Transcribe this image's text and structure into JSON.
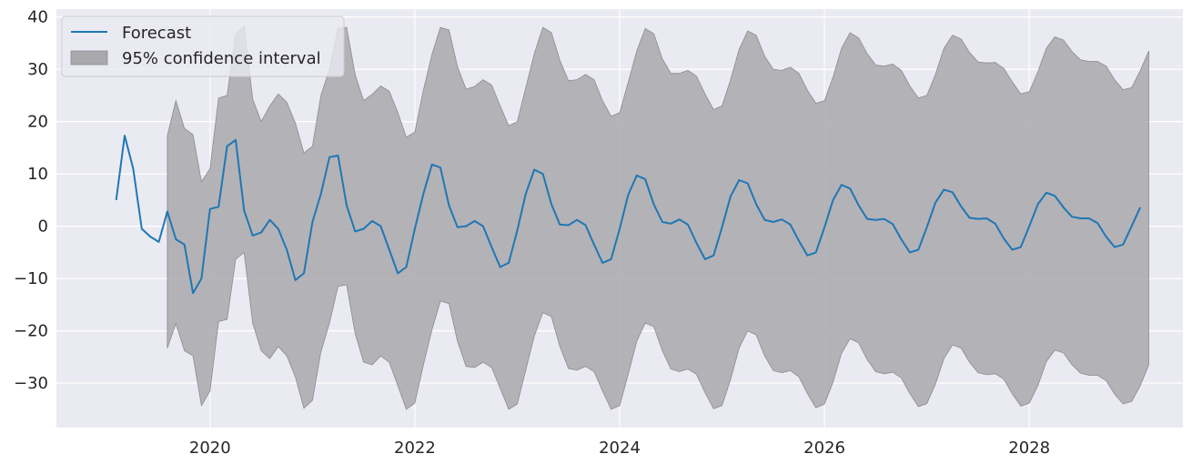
{
  "chart_data": {
    "type": "line",
    "title": "",
    "xlabel": "",
    "ylabel": "",
    "xlim": [
      2018.5,
      2029.5
    ],
    "ylim": [
      -38.5,
      41.5
    ],
    "x_tick_labels": [
      "2020",
      "2022",
      "2024",
      "2026",
      "2028"
    ],
    "x_ticks": [
      2020,
      2022,
      2024,
      2026,
      2028
    ],
    "y_ticks": [
      -30,
      -20,
      -10,
      0,
      10,
      20,
      30,
      40
    ],
    "y_tick_labels": [
      "−30",
      "−20",
      "−10",
      "0",
      "10",
      "20",
      "30",
      "40"
    ],
    "grid": true,
    "legend_position": "top-left",
    "colors": {
      "background": "#eaeaf2",
      "grid": "#ffffff",
      "forecast_line": "#1f77b4",
      "interval_fill": "#a9a8ad",
      "interval_edge": "#8c8b90"
    },
    "series": [
      {
        "name": "Forecast",
        "x_start": "2019-02",
        "frequency": "monthly",
        "values": [
          5.0,
          17.3,
          11.0,
          -0.5,
          -2.0,
          -3.0,
          2.8,
          -2.5,
          -3.5,
          -12.8,
          -10.0,
          3.3,
          3.7,
          15.3,
          16.5,
          3.0,
          -1.8,
          -1.2,
          1.2,
          -0.5,
          -4.5,
          -10.3,
          -9.0,
          0.8,
          6.2,
          13.2,
          13.5,
          4.0,
          -1.0,
          -0.5,
          1.0,
          0.0,
          -4.5,
          -9.0,
          -7.8,
          -0.5,
          6.2,
          11.8,
          11.2,
          4.0,
          -0.2,
          0.0,
          1.0,
          0.0,
          -4.0,
          -7.8,
          -7.0,
          -0.8,
          6.2,
          10.8,
          10.0,
          4.2,
          0.3,
          0.2,
          1.2,
          0.2,
          -3.5,
          -7.0,
          -6.3,
          -0.5,
          6.0,
          9.7,
          9.0,
          4.2,
          0.8,
          0.5,
          1.3,
          0.3,
          -3.2,
          -6.3,
          -5.6,
          -0.2,
          5.7,
          8.8,
          8.2,
          4.2,
          1.2,
          0.8,
          1.3,
          0.3,
          -2.8,
          -5.6,
          -5.0,
          -0.2,
          5.0,
          7.9,
          7.2,
          4.0,
          1.4,
          1.2,
          1.4,
          0.4,
          -2.5,
          -5.0,
          -4.5,
          -0.2,
          4.5,
          7.0,
          6.5,
          3.8,
          1.6,
          1.4,
          1.5,
          0.5,
          -2.3,
          -4.5,
          -4.0,
          0.0,
          4.2,
          6.4,
          5.8,
          3.6,
          1.8,
          1.5,
          1.5,
          0.6,
          -2.0,
          -4.0,
          -3.5,
          0.0,
          3.6
        ]
      },
      {
        "name": "95% confidence interval",
        "x_start": "2019-08",
        "frequency": "monthly",
        "lower": [
          -23.3,
          -18.6,
          -23.8,
          -24.8,
          -34.3,
          -31.5,
          -18.2,
          -17.8,
          -6.3,
          -5.0,
          -18.5,
          -23.8,
          -25.3,
          -23.0,
          -24.8,
          -28.8,
          -34.8,
          -33.3,
          -24.0,
          -18.5,
          -11.5,
          -11.2,
          -20.5,
          -26.0,
          -26.5,
          -24.8,
          -26.0,
          -30.5,
          -35.0,
          -33.8,
          -26.5,
          -19.8,
          -14.3,
          -14.8,
          -22.0,
          -26.8,
          -27.0,
          -26.0,
          -27.0,
          -31.0,
          -35.0,
          -34.0,
          -27.5,
          -21.0,
          -16.5,
          -17.3,
          -23.0,
          -27.2,
          -27.5,
          -26.8,
          -27.8,
          -31.5,
          -35.0,
          -34.3,
          -28.3,
          -22.0,
          -18.5,
          -19.2,
          -23.8,
          -27.3,
          -27.8,
          -27.3,
          -28.3,
          -31.8,
          -34.9,
          -34.3,
          -29.3,
          -23.3,
          -20.0,
          -20.8,
          -24.8,
          -27.6,
          -28.0,
          -27.6,
          -28.8,
          -32.0,
          -34.7,
          -34.0,
          -29.8,
          -24.3,
          -21.5,
          -22.3,
          -25.5,
          -27.8,
          -28.2,
          -27.9,
          -29.0,
          -32.0,
          -34.5,
          -33.9,
          -30.2,
          -25.3,
          -22.7,
          -23.3,
          -26.0,
          -28.0,
          -28.4,
          -28.2,
          -29.2,
          -32.0,
          -34.4,
          -33.8,
          -30.5,
          -25.9,
          -23.7,
          -24.2,
          -26.5,
          -28.1,
          -28.5,
          -28.5,
          -29.5,
          -32.1,
          -34.0,
          -33.5,
          -30.5,
          -26.5
        ],
        "upper": [
          17.3,
          24.0,
          18.7,
          17.5,
          8.5,
          11.0,
          24.5,
          25.0,
          36.7,
          38.2,
          24.3,
          20.0,
          23.0,
          25.3,
          23.7,
          19.7,
          14.0,
          15.3,
          25.0,
          30.0,
          37.8,
          38.0,
          29.0,
          24.0,
          25.2,
          26.8,
          25.8,
          21.7,
          17.0,
          18.0,
          26.0,
          32.8,
          38.0,
          37.5,
          30.5,
          26.2,
          26.7,
          28.0,
          27.0,
          23.0,
          19.2,
          20.0,
          26.5,
          33.0,
          38.0,
          37.0,
          31.7,
          27.8,
          28.0,
          29.0,
          28.0,
          24.0,
          21.0,
          21.7,
          27.5,
          33.5,
          37.8,
          36.8,
          32.0,
          29.2,
          29.2,
          29.8,
          28.7,
          25.3,
          22.3,
          23.0,
          28.0,
          33.8,
          37.3,
          36.5,
          32.5,
          30.0,
          29.8,
          30.4,
          29.2,
          26.0,
          23.5,
          24.0,
          28.5,
          34.0,
          37.0,
          36.0,
          33.0,
          30.8,
          30.6,
          31.0,
          29.8,
          26.8,
          24.5,
          25.0,
          29.0,
          34.0,
          36.5,
          35.8,
          33.2,
          31.4,
          31.2,
          31.3,
          30.2,
          27.6,
          25.3,
          25.7,
          29.5,
          34.0,
          36.2,
          35.6,
          33.4,
          31.8,
          31.5,
          31.5,
          30.6,
          28.0,
          26.1,
          26.5,
          29.7,
          33.5
        ]
      }
    ]
  }
}
